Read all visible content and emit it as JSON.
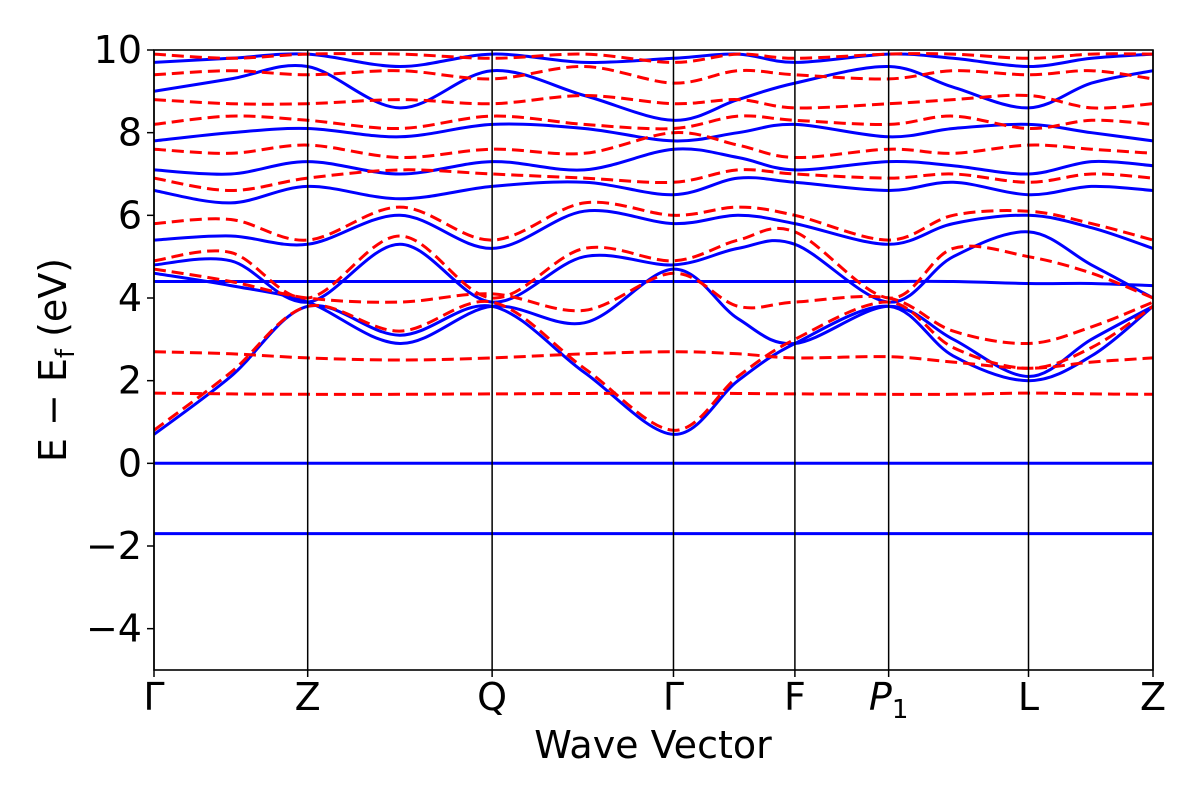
{
  "chart_data": {
    "type": "line",
    "title": "",
    "xlabel": "Wave Vector",
    "ylabel_parts": {
      "main": "E − E",
      "sub": "f",
      "unit": " (eV)"
    },
    "ylim": [
      -5,
      10
    ],
    "y_ticks": [
      -4,
      -2,
      0,
      2,
      4,
      6,
      8,
      10
    ],
    "y_tick_labels": [
      "−4",
      "−2",
      "0",
      "2",
      "4",
      "6",
      "8",
      "10"
    ],
    "k_path": [
      {
        "label": "Γ",
        "k": 0.0
      },
      {
        "label": "Z",
        "k": 1.0
      },
      {
        "label": "Q",
        "k": 2.2
      },
      {
        "label": "Γ",
        "k": 3.38
      },
      {
        "label": "F",
        "k": 4.17
      },
      {
        "label": "P",
        "sub": "1",
        "k": 4.78
      },
      {
        "label": "L",
        "k": 5.69
      },
      {
        "label": "Z",
        "k": 6.5
      }
    ],
    "grid": false,
    "legend": "none",
    "colors": {
      "series_a": "#0000ff",
      "series_b": "#ff0000"
    },
    "series": [
      {
        "style": "solid",
        "color": "#0000ff",
        "bands": [
          {
            "x": [
              0,
              1,
              2.2,
              3.38,
              4.17,
              4.78,
              5.69,
              6.5
            ],
            "y": [
              -1.7,
              -1.7,
              -1.7,
              -1.7,
              -1.7,
              -1.7,
              -1.7,
              -1.7
            ]
          },
          {
            "x": [
              0,
              1,
              2.2,
              3.38,
              4.17,
              4.78,
              5.69,
              6.5
            ],
            "y": [
              0,
              0,
              0,
              0,
              0,
              0,
              0,
              0
            ]
          },
          {
            "x": [
              0,
              0.5,
              1,
              1.6,
              2.2,
              2.8,
              3.38,
              3.8,
              4.17,
              4.78,
              5.2,
              5.69,
              6.1,
              6.5
            ],
            "y": [
              0.7,
              2.1,
              3.8,
              3.1,
              3.8,
              2.2,
              0.7,
              2.0,
              2.9,
              3.8,
              2.6,
              2.0,
              2.6,
              3.8
            ]
          },
          {
            "x": [
              0,
              0.5,
              1,
              1.6,
              2.2,
              2.8,
              3.38,
              3.8,
              4.17,
              4.78,
              5.2,
              5.69,
              6.1,
              6.5
            ],
            "y": [
              4.4,
              4.4,
              4.4,
              4.4,
              4.4,
              4.4,
              4.4,
              4.4,
              4.4,
              4.4,
              4.4,
              4.35,
              4.35,
              4.3
            ]
          },
          {
            "x": [
              0,
              0.5,
              1,
              1.6,
              2.2,
              2.8,
              3.38,
              3.8,
              4.17,
              4.78,
              5.2,
              5.69,
              6.1,
              6.5
            ],
            "y": [
              4.6,
              4.3,
              3.9,
              2.9,
              3.8,
              3.4,
              4.7,
              3.5,
              2.9,
              3.8,
              3.0,
              2.1,
              3.0,
              3.8
            ]
          },
          {
            "x": [
              0,
              0.5,
              1,
              1.6,
              2.2,
              2.8,
              3.38,
              3.8,
              4.17,
              4.78,
              5.2,
              5.69,
              6.1,
              6.5
            ],
            "y": [
              4.8,
              4.9,
              3.9,
              5.3,
              3.9,
              5.0,
              4.8,
              5.2,
              5.3,
              3.9,
              5.0,
              5.6,
              4.8,
              4.0
            ]
          },
          {
            "x": [
              0,
              0.5,
              1,
              1.6,
              2.2,
              2.8,
              3.38,
              3.8,
              4.17,
              4.78,
              5.2,
              5.69,
              6.1,
              6.5
            ],
            "y": [
              5.4,
              5.5,
              5.3,
              6.0,
              5.2,
              6.1,
              5.8,
              6.0,
              5.8,
              5.3,
              5.8,
              6.0,
              5.7,
              5.2
            ]
          },
          {
            "x": [
              0,
              0.5,
              1,
              1.6,
              2.2,
              2.8,
              3.38,
              3.8,
              4.17,
              4.78,
              5.2,
              5.69,
              6.1,
              6.5
            ],
            "y": [
              6.6,
              6.3,
              6.7,
              6.4,
              6.7,
              6.8,
              6.5,
              6.9,
              6.8,
              6.6,
              6.8,
              6.5,
              6.7,
              6.6
            ]
          },
          {
            "x": [
              0,
              0.5,
              1,
              1.6,
              2.2,
              2.8,
              3.38,
              3.8,
              4.17,
              4.78,
              5.2,
              5.69,
              6.1,
              6.5
            ],
            "y": [
              7.1,
              7.0,
              7.3,
              7.0,
              7.3,
              7.1,
              7.6,
              7.4,
              7.1,
              7.3,
              7.2,
              7.0,
              7.3,
              7.2
            ]
          },
          {
            "x": [
              0,
              0.5,
              1,
              1.6,
              2.2,
              2.8,
              3.38,
              3.8,
              4.17,
              4.78,
              5.2,
              5.69,
              6.1,
              6.5
            ],
            "y": [
              7.8,
              8.0,
              8.1,
              7.9,
              8.2,
              8.1,
              7.8,
              8.0,
              8.2,
              7.9,
              8.1,
              8.2,
              8.0,
              7.8
            ]
          },
          {
            "x": [
              0,
              0.5,
              1,
              1.6,
              2.2,
              2.8,
              3.38,
              3.8,
              4.17,
              4.78,
              5.2,
              5.69,
              6.1,
              6.5
            ],
            "y": [
              9.0,
              9.3,
              9.6,
              8.6,
              9.5,
              8.9,
              8.3,
              8.8,
              9.2,
              9.6,
              9.1,
              8.6,
              9.2,
              9.5
            ]
          },
          {
            "x": [
              0,
              0.5,
              1,
              1.6,
              2.2,
              2.8,
              3.38,
              3.8,
              4.17,
              4.78,
              5.2,
              5.69,
              6.1,
              6.5
            ],
            "y": [
              9.7,
              9.8,
              9.9,
              9.6,
              9.9,
              9.7,
              9.8,
              9.9,
              9.7,
              9.9,
              9.8,
              9.6,
              9.8,
              9.9
            ]
          }
        ]
      },
      {
        "style": "dashed",
        "color": "#ff0000",
        "bands": [
          {
            "x": [
              0,
              0.5,
              1,
              1.6,
              2.2,
              2.8,
              3.38,
              3.8,
              4.17,
              4.78,
              5.2,
              5.69,
              6.1,
              6.5
            ],
            "y": [
              1.7,
              1.68,
              1.67,
              1.67,
              1.68,
              1.69,
              1.7,
              1.69,
              1.68,
              1.67,
              1.67,
              1.7,
              1.68,
              1.67
            ]
          },
          {
            "x": [
              0,
              0.5,
              1,
              1.6,
              2.2,
              2.8,
              3.38,
              3.8,
              4.17,
              4.78,
              5.2,
              5.69,
              6.1,
              6.5
            ],
            "y": [
              2.7,
              2.65,
              2.55,
              2.5,
              2.55,
              2.65,
              2.7,
              2.65,
              2.55,
              2.58,
              2.45,
              2.3,
              2.45,
              2.55
            ]
          },
          {
            "x": [
              0,
              0.5,
              1,
              1.6,
              2.2,
              2.8,
              3.38,
              3.8,
              4.17,
              4.78,
              5.2,
              5.69,
              6.1,
              6.5
            ],
            "y": [
              0.8,
              2.2,
              3.8,
              3.2,
              3.9,
              2.3,
              0.8,
              2.1,
              3.0,
              3.9,
              2.8,
              2.3,
              2.8,
              3.8
            ]
          },
          {
            "x": [
              0,
              0.5,
              1,
              1.6,
              2.2,
              2.8,
              3.38,
              3.8,
              4.17,
              4.78,
              5.2,
              5.69,
              6.1,
              6.5
            ],
            "y": [
              4.7,
              4.4,
              4.0,
              3.9,
              4.1,
              3.7,
              4.6,
              3.8,
              3.9,
              4.0,
              3.2,
              2.9,
              3.3,
              3.9
            ]
          },
          {
            "x": [
              0,
              0.5,
              1,
              1.6,
              2.2,
              2.8,
              3.38,
              3.8,
              4.17,
              4.78,
              5.2,
              5.69,
              6.1,
              6.5
            ],
            "y": [
              4.9,
              5.1,
              4.0,
              5.5,
              4.0,
              5.2,
              4.9,
              5.4,
              5.6,
              4.0,
              5.2,
              5.0,
              4.6,
              4.0
            ]
          },
          {
            "x": [
              0,
              0.5,
              1,
              1.6,
              2.2,
              2.8,
              3.38,
              3.8,
              4.17,
              4.78,
              5.2,
              5.69,
              6.1,
              6.5
            ],
            "y": [
              5.8,
              5.9,
              5.4,
              6.2,
              5.4,
              6.3,
              6.0,
              6.2,
              6.0,
              5.4,
              6.0,
              6.1,
              5.8,
              5.4
            ]
          },
          {
            "x": [
              0,
              0.5,
              1,
              1.6,
              2.2,
              2.8,
              3.38,
              3.8,
              4.17,
              4.78,
              5.2,
              5.69,
              6.1,
              6.5
            ],
            "y": [
              6.9,
              6.6,
              6.9,
              7.1,
              7.0,
              6.9,
              6.8,
              7.1,
              7.0,
              6.9,
              7.0,
              6.8,
              7.0,
              6.9
            ]
          },
          {
            "x": [
              0,
              0.5,
              1,
              1.6,
              2.2,
              2.8,
              3.38,
              3.8,
              4.17,
              4.78,
              5.2,
              5.69,
              6.1,
              6.5
            ],
            "y": [
              7.6,
              7.5,
              7.7,
              7.4,
              7.6,
              7.5,
              8.0,
              7.7,
              7.4,
              7.6,
              7.5,
              7.7,
              7.6,
              7.5
            ]
          },
          {
            "x": [
              0,
              0.5,
              1,
              1.6,
              2.2,
              2.8,
              3.38,
              3.8,
              4.17,
              4.78,
              5.2,
              5.69,
              6.1,
              6.5
            ],
            "y": [
              8.2,
              8.4,
              8.3,
              8.1,
              8.4,
              8.2,
              8.1,
              8.4,
              8.3,
              8.2,
              8.4,
              8.1,
              8.3,
              8.2
            ]
          },
          {
            "x": [
              0,
              0.5,
              1,
              1.6,
              2.2,
              2.8,
              3.38,
              3.8,
              4.17,
              4.78,
              5.2,
              5.69,
              6.1,
              6.5
            ],
            "y": [
              8.8,
              8.7,
              8.7,
              8.8,
              8.7,
              8.9,
              8.7,
              8.8,
              8.6,
              8.7,
              8.8,
              8.9,
              8.6,
              8.7
            ]
          },
          {
            "x": [
              0,
              0.5,
              1,
              1.6,
              2.2,
              2.8,
              3.38,
              3.8,
              4.17,
              4.78,
              5.2,
              5.69,
              6.1,
              6.5
            ],
            "y": [
              9.4,
              9.5,
              9.4,
              9.5,
              9.3,
              9.6,
              9.2,
              9.5,
              9.4,
              9.3,
              9.5,
              9.4,
              9.5,
              9.3
            ]
          },
          {
            "x": [
              0,
              0.5,
              1,
              1.6,
              2.2,
              2.8,
              3.38,
              3.8,
              4.17,
              4.78,
              5.2,
              5.69,
              6.1,
              6.5
            ],
            "y": [
              9.9,
              9.8,
              9.9,
              9.9,
              9.8,
              9.9,
              9.7,
              9.9,
              9.8,
              9.9,
              9.9,
              9.8,
              9.9,
              9.9
            ]
          }
        ]
      }
    ]
  }
}
